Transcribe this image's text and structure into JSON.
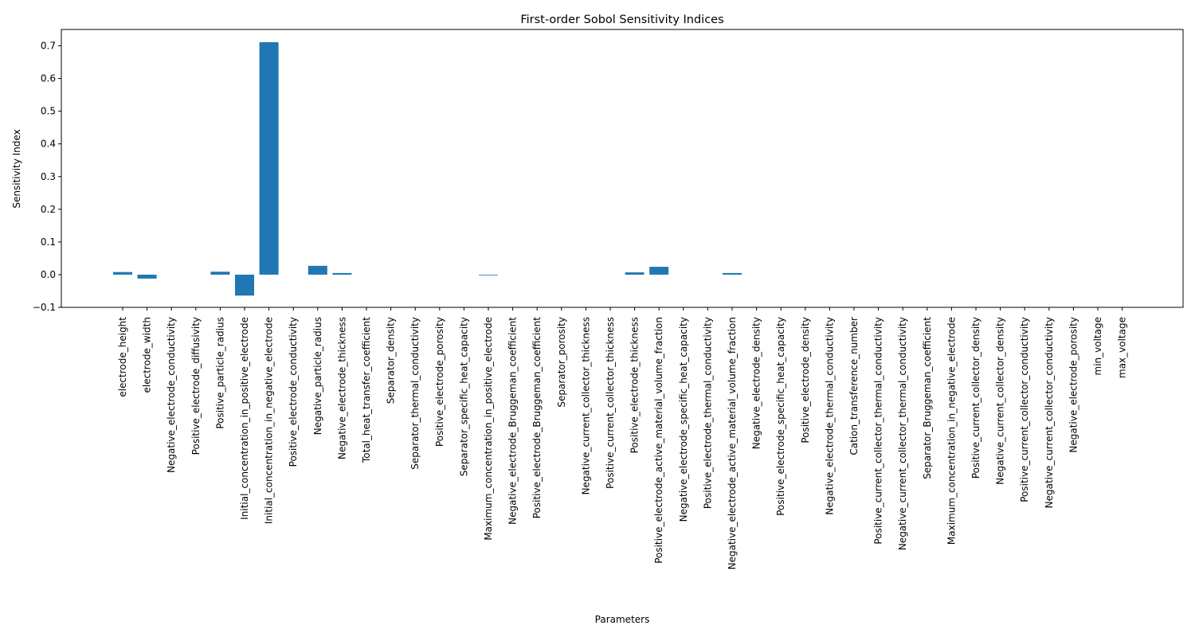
{
  "chart_data": {
    "type": "bar",
    "title": "First-order Sobol Sensitivity Indices",
    "xlabel": "Parameters",
    "ylabel": "Sensitivity Index",
    "ylim": [
      -0.1,
      0.75
    ],
    "yticks": [
      -0.1,
      0.0,
      0.1,
      0.2,
      0.3,
      0.4,
      0.5,
      0.6,
      0.7
    ],
    "ytick_labels": [
      "−0.1",
      "0.0",
      "0.1",
      "0.2",
      "0.3",
      "0.4",
      "0.5",
      "0.6",
      "0.7"
    ],
    "grid": false,
    "bar_color": "#1f77b4",
    "categories": [
      "electrode_height",
      "electrode_width",
      "Negative_electrode_conductivity",
      "Positive_electrode_diffusivity",
      "Positive_particle_radius",
      "Initial_concentration_in_positive_electrode",
      "Initial_concentration_in_negative_electrode",
      "Positive_electrode_conductivity",
      "Negative_particle_radius",
      "Negative_electrode_thickness",
      "Total_heat_transfer_coefficient",
      "Separator_density",
      "Separator_thermal_conductivity",
      "Positive_electrode_porosity",
      "Separator_specific_heat_capacity",
      "Maximum_concentration_in_positive_electrode",
      "Negative_electrode_Bruggeman_coefficient",
      "Positive_electrode_Bruggeman_coefficient",
      "Separator_porosity",
      "Negative_current_collector_thickness",
      "Positive_current_collector_thickness",
      "Positive_electrode_thickness",
      "Positive_electrode_active_material_volume_fraction",
      "Negative_electrode_specific_heat_capacity",
      "Positive_electrode_thermal_conductivity",
      "Negative_electrode_active_material_volume_fraction",
      "Negative_electrode_density",
      "Positive_electrode_specific_heat_capacity",
      "Positive_electrode_density",
      "Negative_electrode_thermal_conductivity",
      "Cation_transference_number",
      "Positive_current_collector_thermal_conductivity",
      "Negative_current_collector_thermal_conductivity",
      "Separator_Bruggeman_coefficient",
      "Maximum_concentration_in_negative_electrode",
      "Positive_current_collector_density",
      "Negative_current_collector_density",
      "Positive_current_collector_conductivity",
      "Negative_current_collector_conductivity",
      "Negative_electrode_porosity",
      "min_voltage",
      "max_voltage"
    ],
    "values": [
      0.008,
      -0.012,
      0.0,
      0.0,
      0.009,
      -0.064,
      0.711,
      0.0,
      0.027,
      0.005,
      0.0,
      0.0,
      0.0,
      0.0,
      0.0,
      -0.002,
      0.0,
      0.0,
      0.0,
      0.0,
      0.0,
      0.007,
      0.024,
      0.0,
      0.0,
      0.005,
      0.0,
      0.0,
      0.0,
      0.0,
      0.0,
      0.0,
      0.0,
      0.0,
      0.0,
      0.0,
      0.0,
      0.0,
      0.0,
      0.0,
      0.0,
      0.0
    ]
  }
}
